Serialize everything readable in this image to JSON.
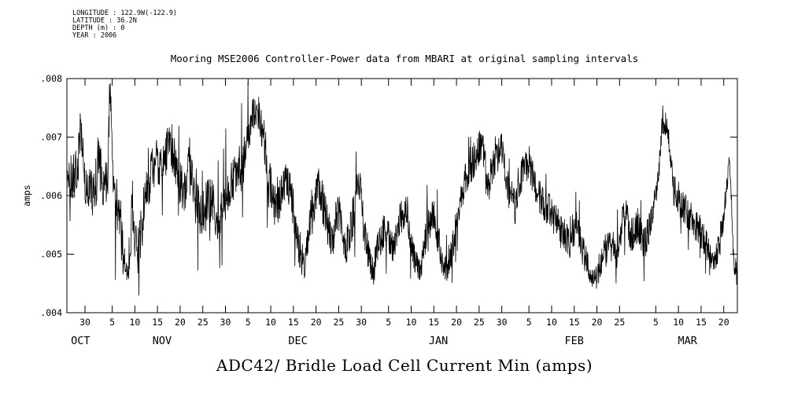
{
  "metadata": {
    "lines": [
      "LONGITUDE : 122.9W(-122.9)",
      "LATITUDE : 36.2N",
      "DEPTH (m) : 0",
      "YEAR : 2006"
    ]
  },
  "chart_data": {
    "type": "line",
    "title": "Mooring MSE2006 Controller-Power data from MBARI at original sampling intervals",
    "bottom_title": "ADC42/ Bridle Load Cell Current Min (amps)",
    "ylabel": "amps",
    "ylim": [
      0.004,
      0.008
    ],
    "xlim_days": [
      0,
      148
    ],
    "x_axis_start_date": "OCT 26",
    "grid": false,
    "legend": false,
    "line_color": "#000000",
    "background_color": "#ffffff",
    "y_ticks": [
      {
        "label": ".004",
        "value": 0.004
      },
      {
        "label": ".005",
        "value": 0.005
      },
      {
        "label": ".006",
        "value": 0.006
      },
      {
        "label": ".007",
        "value": 0.007
      },
      {
        "label": ".008",
        "value": 0.008
      }
    ],
    "x_ticks": [
      {
        "label": "30",
        "day": 4
      },
      {
        "label": "5",
        "day": 10
      },
      {
        "label": "10",
        "day": 15
      },
      {
        "label": "15",
        "day": 20
      },
      {
        "label": "20",
        "day": 25
      },
      {
        "label": "25",
        "day": 30
      },
      {
        "label": "30",
        "day": 35
      },
      {
        "label": "5",
        "day": 40
      },
      {
        "label": "10",
        "day": 45
      },
      {
        "label": "15",
        "day": 50
      },
      {
        "label": "20",
        "day": 55
      },
      {
        "label": "25",
        "day": 60
      },
      {
        "label": "30",
        "day": 65
      },
      {
        "label": "5",
        "day": 71
      },
      {
        "label": "10",
        "day": 76
      },
      {
        "label": "15",
        "day": 81
      },
      {
        "label": "20",
        "day": 86
      },
      {
        "label": "25",
        "day": 91
      },
      {
        "label": "30",
        "day": 96
      },
      {
        "label": "5",
        "day": 102
      },
      {
        "label": "10",
        "day": 107
      },
      {
        "label": "15",
        "day": 112
      },
      {
        "label": "20",
        "day": 117
      },
      {
        "label": "25",
        "day": 122
      },
      {
        "label": "5",
        "day": 130
      },
      {
        "label": "10",
        "day": 135
      },
      {
        "label": "15",
        "day": 140
      },
      {
        "label": "20",
        "day": 145
      }
    ],
    "month_labels": [
      {
        "label": "OCT",
        "day": 3
      },
      {
        "label": "NOV",
        "day": 21
      },
      {
        "label": "DEC",
        "day": 51
      },
      {
        "label": "JAN",
        "day": 82
      },
      {
        "label": "FEB",
        "day": 112
      },
      {
        "label": "MAR",
        "day": 137
      }
    ],
    "series": [
      {
        "name": "Controller-Power current min",
        "noise_seed": 20061026,
        "noise_step_days": 0.07,
        "points_format": [
          "day_offset_from_OCT26",
          "amps",
          "noise_spread_amps"
        ],
        "points": [
          [
            0,
            0.0063,
            0.0004
          ],
          [
            2,
            0.0064,
            0.0005
          ],
          [
            3,
            0.0072,
            0.0004
          ],
          [
            4,
            0.0062,
            0.0004
          ],
          [
            6,
            0.006,
            0.0004
          ],
          [
            7,
            0.0066,
            0.0005
          ],
          [
            8,
            0.0061,
            0.0004
          ],
          [
            9,
            0.0063,
            0.0004
          ],
          [
            9.6,
            0.0078,
            0.0002
          ],
          [
            10.2,
            0.0062,
            0.0004
          ],
          [
            11,
            0.0058,
            0.0005
          ],
          [
            12.5,
            0.005,
            0.0004
          ],
          [
            13.5,
            0.0047,
            0.0003
          ],
          [
            14.5,
            0.0058,
            0.0005
          ],
          [
            15.5,
            0.0049,
            0.0004
          ],
          [
            16.5,
            0.0055,
            0.0005
          ],
          [
            17.5,
            0.006,
            0.0004
          ],
          [
            19,
            0.0065,
            0.0004
          ],
          [
            21,
            0.0066,
            0.0004
          ],
          [
            23,
            0.0069,
            0.0004
          ],
          [
            24.5,
            0.0063,
            0.0004
          ],
          [
            26,
            0.006,
            0.0004
          ],
          [
            27,
            0.0068,
            0.0003
          ],
          [
            28,
            0.006,
            0.0004
          ],
          [
            30,
            0.0057,
            0.0005
          ],
          [
            32,
            0.006,
            0.0004
          ],
          [
            33.5,
            0.0055,
            0.0004
          ],
          [
            35,
            0.0059,
            0.0004
          ],
          [
            37,
            0.0063,
            0.0004
          ],
          [
            39,
            0.0067,
            0.0004
          ],
          [
            41,
            0.0074,
            0.0003
          ],
          [
            42,
            0.0075,
            0.0003
          ],
          [
            43.5,
            0.007,
            0.0004
          ],
          [
            45,
            0.006,
            0.0005
          ],
          [
            47,
            0.0059,
            0.0004
          ],
          [
            48.5,
            0.0063,
            0.0003
          ],
          [
            50,
            0.0058,
            0.0004
          ],
          [
            51.5,
            0.005,
            0.0003
          ],
          [
            52.5,
            0.0048,
            0.0003
          ],
          [
            54,
            0.0057,
            0.0004
          ],
          [
            55.5,
            0.0062,
            0.0003
          ],
          [
            57,
            0.0057,
            0.0004
          ],
          [
            58.5,
            0.0052,
            0.0003
          ],
          [
            60,
            0.0058,
            0.0004
          ],
          [
            61.5,
            0.0051,
            0.0003
          ],
          [
            63,
            0.0055,
            0.0004
          ],
          [
            64.5,
            0.0063,
            0.0003
          ],
          [
            66,
            0.0052,
            0.0003
          ],
          [
            67.5,
            0.0047,
            0.0003
          ],
          [
            69,
            0.0052,
            0.0003
          ],
          [
            70.5,
            0.0055,
            0.0003
          ],
          [
            72,
            0.005,
            0.0003
          ],
          [
            73.5,
            0.0056,
            0.0003
          ],
          [
            75,
            0.0058,
            0.0003
          ],
          [
            76.5,
            0.0049,
            0.0003
          ],
          [
            78,
            0.0047,
            0.0002
          ],
          [
            79.5,
            0.0054,
            0.0003
          ],
          [
            81,
            0.0057,
            0.0003
          ],
          [
            82.5,
            0.005,
            0.0003
          ],
          [
            84,
            0.0047,
            0.0002
          ],
          [
            85.5,
            0.0053,
            0.0003
          ],
          [
            87,
            0.006,
            0.0003
          ],
          [
            88.5,
            0.0064,
            0.0003
          ],
          [
            90,
            0.0066,
            0.0003
          ],
          [
            91.5,
            0.0069,
            0.0003
          ],
          [
            93,
            0.0062,
            0.0003
          ],
          [
            94.5,
            0.0066,
            0.0003
          ],
          [
            96,
            0.0068,
            0.0003
          ],
          [
            97.5,
            0.0061,
            0.0003
          ],
          [
            99,
            0.0058,
            0.0003
          ],
          [
            100.5,
            0.0064,
            0.0003
          ],
          [
            102,
            0.0066,
            0.0003
          ],
          [
            103.5,
            0.0061,
            0.0003
          ],
          [
            105,
            0.0059,
            0.0003
          ],
          [
            107,
            0.0057,
            0.0003
          ],
          [
            109,
            0.0054,
            0.0003
          ],
          [
            111,
            0.0052,
            0.0003
          ],
          [
            112.5,
            0.0055,
            0.0003
          ],
          [
            114,
            0.005,
            0.0003
          ],
          [
            115.5,
            0.0047,
            0.0002
          ],
          [
            117,
            0.0046,
            0.0002
          ],
          [
            118.5,
            0.005,
            0.0003
          ],
          [
            120,
            0.0052,
            0.0003
          ],
          [
            121.5,
            0.005,
            0.0003
          ],
          [
            123,
            0.0058,
            0.0003
          ],
          [
            124.5,
            0.0053,
            0.0003
          ],
          [
            126,
            0.0055,
            0.0003
          ],
          [
            127.5,
            0.0052,
            0.0003
          ],
          [
            129,
            0.0055,
            0.0003
          ],
          [
            130.5,
            0.0062,
            0.0003
          ],
          [
            131.5,
            0.0073,
            0.0002
          ],
          [
            132.5,
            0.0071,
            0.0003
          ],
          [
            134,
            0.0061,
            0.0003
          ],
          [
            135.5,
            0.0059,
            0.0003
          ],
          [
            137,
            0.0057,
            0.0003
          ],
          [
            139,
            0.0055,
            0.0003
          ],
          [
            141,
            0.0052,
            0.0003
          ],
          [
            142.5,
            0.0049,
            0.0002
          ],
          [
            144,
            0.0051,
            0.0003
          ],
          [
            145.5,
            0.006,
            0.0003
          ],
          [
            146.3,
            0.0066,
            0.0002
          ],
          [
            147.2,
            0.0049,
            0.0002
          ],
          [
            148,
            0.0046,
            0.0002
          ]
        ]
      }
    ]
  }
}
